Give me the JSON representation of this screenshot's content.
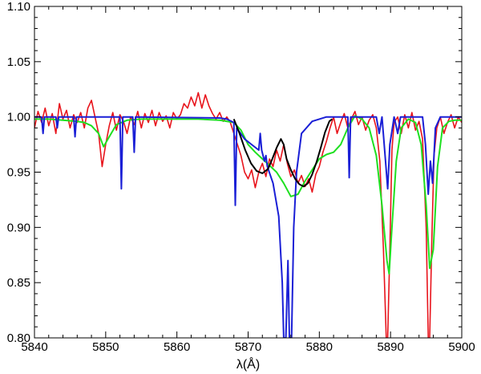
{
  "chart_data": {
    "type": "line",
    "title": "",
    "xlabel": "λ(Å)",
    "ylabel": "",
    "xlim": [
      5840,
      5900
    ],
    "ylim": [
      0.8,
      1.1
    ],
    "xticks": [
      5840,
      5850,
      5860,
      5870,
      5880,
      5890,
      5900
    ],
    "xtick_labels": [
      "5840",
      "5850",
      "5860",
      "5870",
      "5880",
      "5890",
      "5900"
    ],
    "yticks": [
      0.8,
      0.85,
      0.9,
      0.95,
      1.0,
      1.05,
      1.1
    ],
    "ytick_labels": [
      "0.80",
      "0.85",
      "0.90",
      "0.95",
      "1.00",
      "1.05",
      "1.10"
    ],
    "grid": false,
    "legend": "none",
    "series": [
      {
        "color": "#e8141c",
        "x": [
          5840.0,
          5840.5,
          5841.0,
          5841.5,
          5842.0,
          5842.5,
          5843.0,
          5843.5,
          5844.0,
          5844.5,
          5845.0,
          5845.5,
          5846.0,
          5846.5,
          5847.0,
          5847.5,
          5848.0,
          5848.5,
          5849.0,
          5849.5,
          5850.0,
          5850.5,
          5851.0,
          5851.5,
          5852.0,
          5852.5,
          5853.0,
          5853.5,
          5854.0,
          5854.5,
          5855.0,
          5855.5,
          5856.0,
          5856.5,
          5857.0,
          5857.5,
          5858.0,
          5858.5,
          5859.0,
          5859.5,
          5860.0,
          5860.5,
          5861.0,
          5861.5,
          5862.0,
          5862.5,
          5863.0,
          5863.5,
          5864.0,
          5864.5,
          5865.0,
          5865.5,
          5866.0,
          5866.5,
          5867.0,
          5867.5,
          5868.0,
          5868.5,
          5869.0,
          5869.5,
          5870.0,
          5870.5,
          5871.0,
          5871.5,
          5872.0,
          5872.5,
          5873.0,
          5873.5,
          5874.0,
          5874.5,
          5875.0,
          5875.5,
          5876.0,
          5876.5,
          5877.0,
          5877.5,
          5878.0,
          5878.5,
          5879.0,
          5879.5,
          5880.0,
          5880.5,
          5881.0,
          5881.5,
          5882.0,
          5882.5,
          5883.0,
          5883.5,
          5884.0,
          5884.5,
          5885.0,
          5885.5,
          5886.0,
          5886.5,
          5887.0,
          5887.5,
          5888.0,
          5888.5,
          5889.0,
          5889.4,
          5889.6,
          5889.9,
          5890.2,
          5890.5,
          5891.0,
          5891.5,
          5892.0,
          5892.5,
          5893.0,
          5893.5,
          5894.0,
          5894.5,
          5895.0,
          5895.3,
          5895.5,
          5895.8,
          5896.1,
          5896.5,
          5897.0,
          5897.5,
          5898.0,
          5898.5,
          5899.0,
          5899.5,
          5900.0
        ],
        "y": [
          0.99,
          1.005,
          0.995,
          1.008,
          0.992,
          1.003,
          0.985,
          1.012,
          0.998,
          1.006,
          0.99,
          1.002,
          0.995,
          1.004,
          0.99,
          1.008,
          1.015,
          1.0,
          0.985,
          0.955,
          0.975,
          0.992,
          1.004,
          0.988,
          1.002,
          0.996,
          0.985,
          1.0,
          0.993,
          1.005,
          0.99,
          1.003,
          0.995,
          1.006,
          0.992,
          1.004,
          0.996,
          1.001,
          0.99,
          1.004,
          0.998,
          1.002,
          1.012,
          1.008,
          1.018,
          1.01,
          1.022,
          1.008,
          1.02,
          1.01,
          1.003,
          0.998,
          1.004,
          0.996,
          1.0,
          0.995,
          0.985,
          0.975,
          0.965,
          0.95,
          0.944,
          0.952,
          0.936,
          0.95,
          0.958,
          0.946,
          0.962,
          0.955,
          0.97,
          0.96,
          0.975,
          0.958,
          0.946,
          0.952,
          0.94,
          0.947,
          0.937,
          0.944,
          0.932,
          0.948,
          0.955,
          0.968,
          0.978,
          0.99,
          1.0,
          0.985,
          0.995,
          1.003,
          0.99,
          0.998,
          1.005,
          0.993,
          1.0,
          0.988,
          0.997,
          1.002,
          0.99,
          0.96,
          0.88,
          0.8,
          0.8,
          0.88,
          0.97,
          0.995,
          1.0,
          0.985,
          1.002,
          0.99,
          1.004,
          0.988,
          0.996,
          0.98,
          0.9,
          0.8,
          0.8,
          0.89,
          0.965,
          0.99,
          1.0,
          0.985,
          0.995,
          1.002,
          0.99,
          1.0,
          0.995
        ]
      },
      {
        "color": "#1ee020",
        "x": [
          5840,
          5842,
          5844,
          5846,
          5847,
          5848,
          5849,
          5849.7,
          5850.5,
          5851.5,
          5853,
          5855,
          5857,
          5860,
          5863,
          5866,
          5868,
          5869,
          5870,
          5871,
          5872,
          5873,
          5874,
          5875,
          5876,
          5877,
          5878,
          5879,
          5880,
          5881,
          5882,
          5883,
          5884,
          5885,
          5886,
          5887,
          5888,
          5888.8,
          5889.5,
          5889.8,
          5890.2,
          5890.8,
          5891.5,
          5892.5,
          5893.5,
          5894.3,
          5895,
          5895.5,
          5896,
          5896.6,
          5897.3,
          5898.2,
          5899,
          5900
        ],
        "y": [
          0.998,
          0.998,
          0.997,
          0.996,
          0.995,
          0.992,
          0.985,
          0.973,
          0.982,
          0.993,
          0.997,
          0.998,
          0.998,
          0.998,
          0.998,
          0.997,
          0.995,
          0.988,
          0.975,
          0.968,
          0.962,
          0.956,
          0.95,
          0.94,
          0.928,
          0.93,
          0.942,
          0.952,
          0.962,
          0.966,
          0.968,
          0.975,
          0.99,
          1.001,
          0.998,
          0.99,
          0.965,
          0.92,
          0.87,
          0.858,
          0.9,
          0.96,
          0.99,
          0.998,
          0.995,
          0.975,
          0.92,
          0.863,
          0.88,
          0.955,
          0.99,
          0.996,
          0.997,
          0.997
        ]
      },
      {
        "color": "#1a1fd6",
        "x": [
          5840,
          5841.0,
          5841.2,
          5841.4,
          5843.0,
          5843.2,
          5843.4,
          5845.5,
          5845.7,
          5845.9,
          5852.0,
          5852.2,
          5852.4,
          5853.8,
          5854.0,
          5854.2,
          5866.0,
          5867.0,
          5868.0,
          5868.2,
          5868.4,
          5869.5,
          5870.5,
          5871.5,
          5871.7,
          5871.9,
          5872.3,
          5872.5,
          5872.7,
          5873.5,
          5874.3,
          5874.8,
          5875.0,
          5875.3,
          5875.6,
          5875.8,
          5876.1,
          5876.4,
          5876.8,
          5877.5,
          5879.0,
          5881.0,
          5884.0,
          5884.2,
          5884.4,
          5888.0,
          5888.4,
          5888.8,
          5889.3,
          5889.6,
          5889.9,
          5890.5,
          5891.0,
          5891.4,
          5891.8,
          5894.5,
          5894.9,
          5895.3,
          5895.6,
          5895.9,
          5896.3,
          5897.0,
          5900
        ],
        "y": [
          1.0,
          1.0,
          0.985,
          1.0,
          1.0,
          0.99,
          1.0,
          1.0,
          0.982,
          1.0,
          1.0,
          0.935,
          1.0,
          1.0,
          0.968,
          1.0,
          0.999,
          0.998,
          0.995,
          0.92,
          0.99,
          0.98,
          0.975,
          0.97,
          0.985,
          0.97,
          0.96,
          0.965,
          0.955,
          0.94,
          0.91,
          0.85,
          0.8,
          0.8,
          0.87,
          0.8,
          0.8,
          0.9,
          0.95,
          0.985,
          0.996,
          1.0,
          1.0,
          0.945,
          1.0,
          1.0,
          0.985,
          1.0,
          0.96,
          0.935,
          0.975,
          1.0,
          0.985,
          1.0,
          1.0,
          1.0,
          0.975,
          0.93,
          0.96,
          0.94,
          0.99,
          1.0,
          1.0
        ]
      },
      {
        "color": "#000000",
        "x": [
          5868.0,
          5868.8,
          5869.6,
          5870.4,
          5871.2,
          5872.0,
          5872.8,
          5873.4,
          5874.0,
          5874.6,
          5875.0,
          5875.4,
          5876.0,
          5876.6,
          5877.2,
          5877.8,
          5878.4,
          5879.0,
          5879.6,
          5880.2,
          5880.8,
          5881.4,
          5881.8
        ],
        "y": [
          0.998,
          0.985,
          0.97,
          0.958,
          0.951,
          0.949,
          0.953,
          0.962,
          0.972,
          0.98,
          0.975,
          0.962,
          0.952,
          0.944,
          0.939,
          0.937,
          0.94,
          0.948,
          0.959,
          0.972,
          0.986,
          0.996,
          0.998
        ]
      }
    ]
  }
}
